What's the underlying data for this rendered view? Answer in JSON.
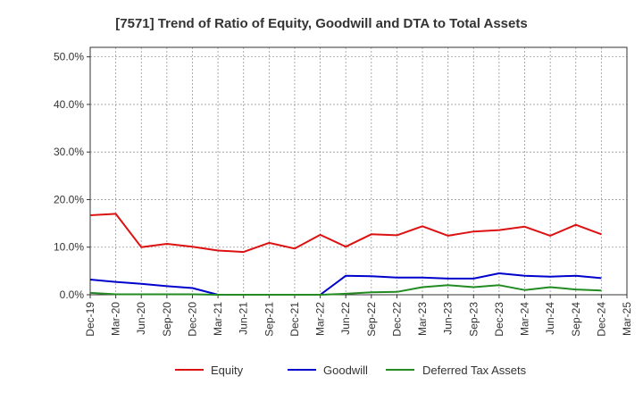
{
  "chart_data": {
    "type": "line",
    "title": "[7571]  Trend of Ratio of Equity, Goodwill and DTA to Total Assets",
    "xlabel": "",
    "ylabel": "",
    "ylim": [
      0,
      52
    ],
    "yticks": [
      0,
      10,
      20,
      30,
      40,
      50
    ],
    "ytick_labels": [
      "0.0%",
      "10.0%",
      "20.0%",
      "30.0%",
      "40.0%",
      "50.0%"
    ],
    "grid": true,
    "legend_position": "bottom",
    "x": [
      "Dec-19",
      "Mar-20",
      "Jun-20",
      "Sep-20",
      "Dec-20",
      "Mar-21",
      "Jun-21",
      "Sep-21",
      "Dec-21",
      "Mar-22",
      "Jun-22",
      "Sep-22",
      "Dec-22",
      "Mar-23",
      "Jun-23",
      "Sep-23",
      "Dec-23",
      "Mar-24",
      "Jun-24",
      "Sep-24",
      "Dec-24",
      "Mar-25"
    ],
    "series": [
      {
        "name": "Equity",
        "color": "#dd1111",
        "values": [
          16.7,
          17.0,
          10.0,
          10.7,
          10.1,
          9.3,
          9.0,
          10.9,
          9.7,
          12.6,
          10.1,
          12.7,
          12.5,
          14.4,
          12.4,
          13.3,
          13.6,
          14.3,
          12.4,
          14.7,
          12.7,
          null
        ]
      },
      {
        "name": "Goodwill",
        "color": "#0000cc",
        "values": [
          3.2,
          2.7,
          2.3,
          1.8,
          1.4,
          0.0,
          0.0,
          0.0,
          0.0,
          0.0,
          4.0,
          3.9,
          3.6,
          3.6,
          3.4,
          3.4,
          4.5,
          4.0,
          3.8,
          4.0,
          3.5,
          null
        ]
      },
      {
        "name": "Deferred Tax Assets",
        "color": "#228b22",
        "values": [
          0.4,
          0.1,
          0.1,
          0.1,
          0.1,
          0.0,
          0.0,
          0.0,
          0.0,
          0.0,
          0.2,
          0.5,
          0.6,
          1.6,
          2.0,
          1.6,
          2.0,
          1.0,
          1.6,
          1.1,
          0.9,
          null
        ]
      }
    ]
  }
}
